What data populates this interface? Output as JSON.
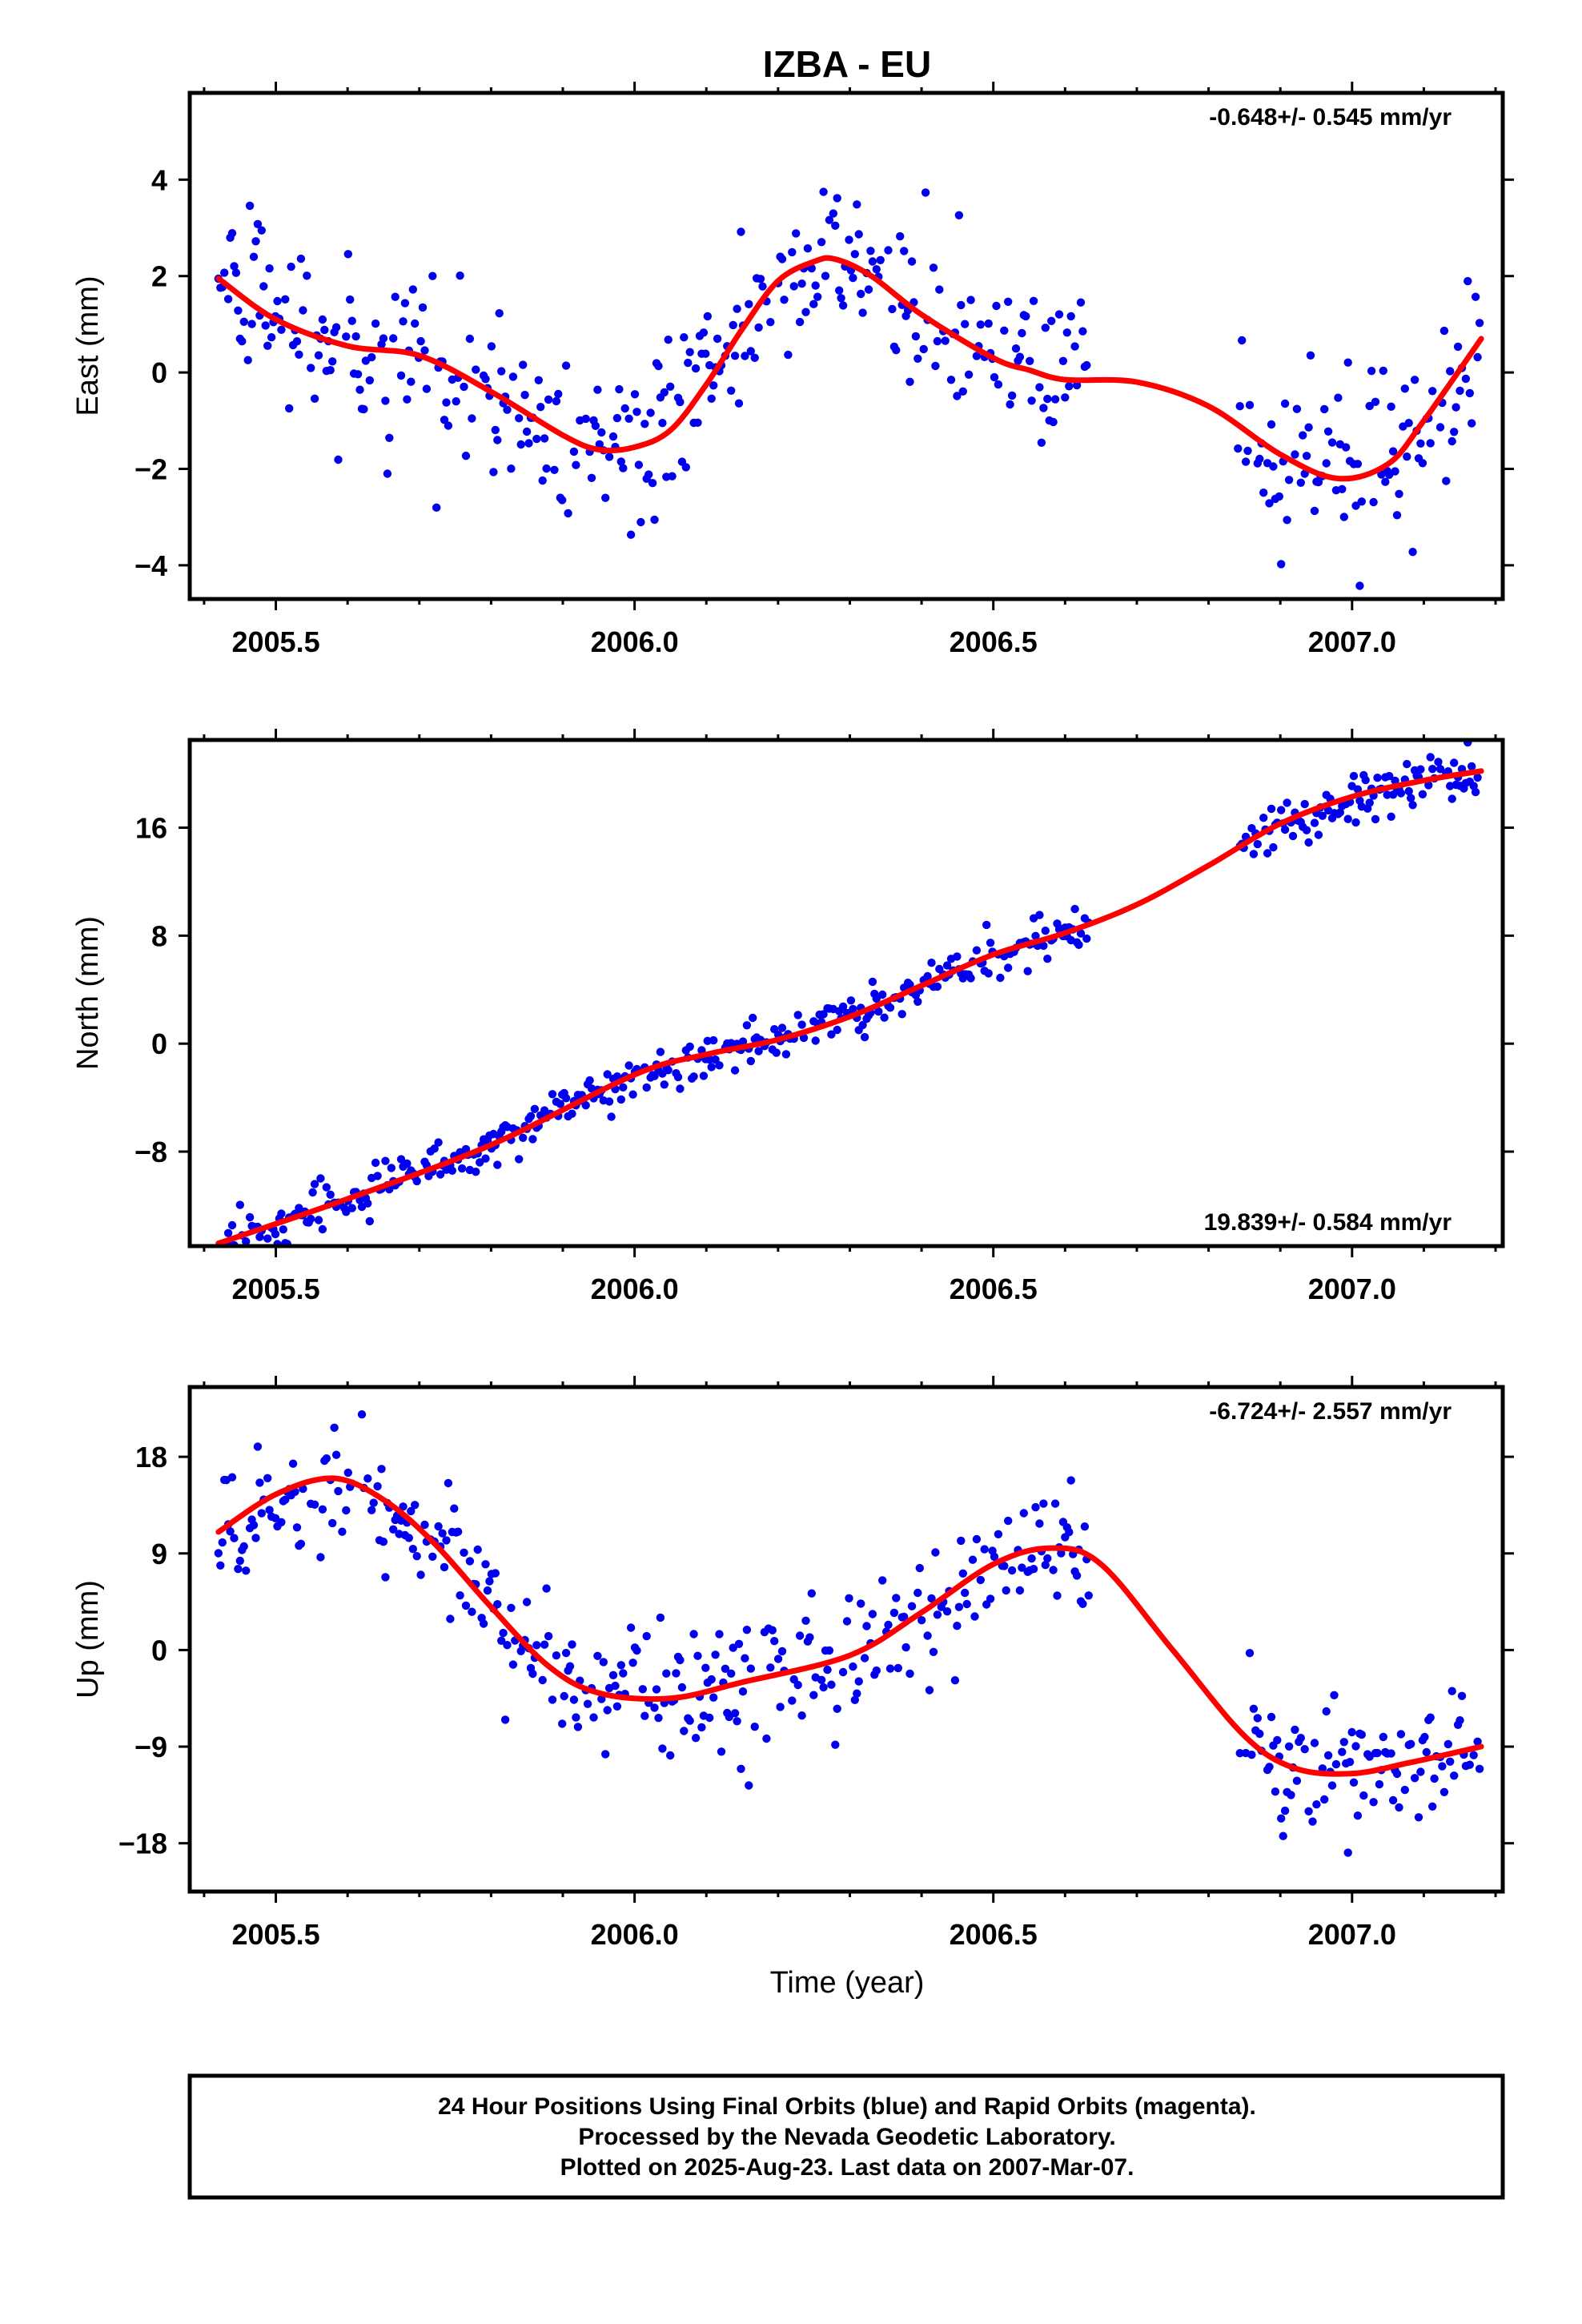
{
  "chart_data": [
    {
      "type": "scatter",
      "title": "IZBA - EU",
      "ylabel": "East (mm)",
      "xlabel": "",
      "xlim": [
        2005.38,
        2007.21
      ],
      "ylim": [
        -4.7,
        5.8
      ],
      "xticks": [
        2005.5,
        2006.0,
        2006.5,
        2007.0
      ],
      "xtick_labels": [
        "2005.5",
        "2006.0",
        "2006.5",
        "2007.0"
      ],
      "yticks": [
        -4,
        -2,
        0,
        2,
        4
      ],
      "ytick_labels": [
        "−4",
        "−2",
        "0",
        "2",
        "4"
      ],
      "rate_text": "-0.648+/- 0.545 mm/yr",
      "rate_position": "top-right",
      "point_color": "#0000ee",
      "fit_color": "#ff0000",
      "scatter_sd": 0.85,
      "fit": {
        "x": [
          2005.42,
          2005.5,
          2005.6,
          2005.7,
          2005.8,
          2005.9,
          2005.95,
          2006.0,
          2006.05,
          2006.1,
          2006.15,
          2006.2,
          2006.25,
          2006.28,
          2006.33,
          2006.4,
          2006.5,
          2006.55,
          2006.6,
          2006.7,
          2006.8,
          2006.9,
          2006.98,
          2007.05,
          2007.1,
          2007.18
        ],
        "y": [
          1.95,
          1.1,
          0.55,
          0.35,
          -0.4,
          -1.3,
          -1.6,
          -1.55,
          -1.2,
          -0.25,
          0.9,
          1.9,
          2.3,
          2.35,
          2.0,
          1.2,
          0.3,
          0.05,
          -0.15,
          -0.2,
          -0.7,
          -1.7,
          -2.2,
          -1.9,
          -1.0,
          0.7
        ]
      },
      "gaps": [
        [
          2006.635,
          2006.84
        ]
      ]
    },
    {
      "type": "scatter",
      "title": "",
      "ylabel": "North (mm)",
      "xlabel": "",
      "xlim": [
        2005.38,
        2007.21
      ],
      "ylim": [
        -15,
        22.5
      ],
      "xticks": [
        2005.5,
        2006.0,
        2006.5,
        2007.0
      ],
      "xtick_labels": [
        "2005.5",
        "2006.0",
        "2006.5",
        "2007.0"
      ],
      "yticks": [
        -8,
        0,
        8,
        16
      ],
      "ytick_labels": [
        "−8",
        "0",
        "8",
        "16"
      ],
      "rate_text": "19.839+/- 0.584 mm/yr",
      "rate_position": "bottom-right",
      "point_color": "#0000ee",
      "fit_color": "#ff0000",
      "scatter_sd": 0.9,
      "fit": {
        "x": [
          2005.42,
          2005.6,
          2005.8,
          2006.0,
          2006.1,
          2006.2,
          2006.3,
          2006.4,
          2006.5,
          2006.6,
          2006.7,
          2006.8,
          2006.9,
          2007.0,
          2007.1,
          2007.18
        ],
        "y": [
          -14.8,
          -11.5,
          -7.5,
          -2.3,
          -0.8,
          0.3,
          2.0,
          4.3,
          6.6,
          8.2,
          10.3,
          13.2,
          16.3,
          18.3,
          19.5,
          20.2
        ]
      },
      "gaps": [
        [
          2006.635,
          2006.84
        ]
      ]
    },
    {
      "type": "scatter",
      "title": "",
      "ylabel": "Up (mm)",
      "xlabel": "Time (year)",
      "xlim": [
        2005.38,
        2007.21
      ],
      "ylim": [
        -22.5,
        24.5
      ],
      "xticks": [
        2005.5,
        2006.0,
        2006.5,
        2007.0
      ],
      "xtick_labels": [
        "2005.5",
        "2006.0",
        "2006.5",
        "2007.0"
      ],
      "yticks": [
        -18,
        -9,
        0,
        9,
        18
      ],
      "ytick_labels": [
        "−18",
        "−9",
        "0",
        "9",
        "18"
      ],
      "rate_text": "-6.724+/- 2.557 mm/yr",
      "rate_position": "top-right",
      "point_color": "#0000ee",
      "fit_color": "#ff0000",
      "scatter_sd": 3.2,
      "fit": {
        "x": [
          2005.42,
          2005.5,
          2005.58,
          2005.65,
          2005.72,
          2005.8,
          2005.88,
          2005.95,
          2006.05,
          2006.15,
          2006.3,
          2006.4,
          2006.5,
          2006.58,
          2006.65,
          2006.75,
          2006.85,
          2006.92,
          2007.0,
          2007.08,
          2007.18
        ],
        "y": [
          11,
          14.5,
          16,
          14,
          10,
          4,
          -1.5,
          -4,
          -4.5,
          -3,
          -0.5,
          3.5,
          8,
          9.5,
          8,
          0,
          -8,
          -11,
          -11.5,
          -10.5,
          -9
        ]
      },
      "gaps": [
        [
          2006.635,
          2006.84
        ]
      ]
    }
  ],
  "caption": {
    "line1": "24 Hour Positions Using Final Orbits (blue) and Rapid Orbits (magenta).",
    "line2": "Processed by the Nevada Geodetic Laboratory.",
    "line3": "Plotted on 2025-Aug-23. Last data on 2007-Mar-07."
  }
}
